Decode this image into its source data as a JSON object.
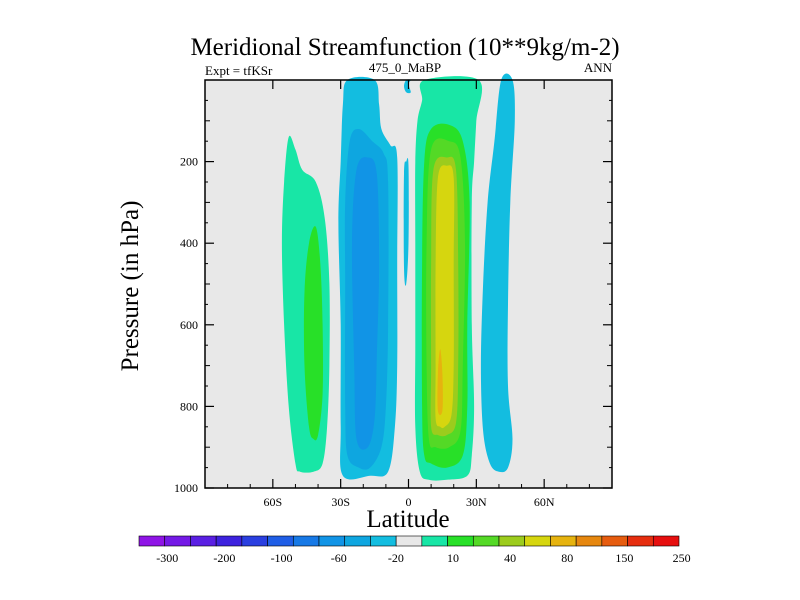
{
  "chart_data": {
    "type": "contour",
    "title": "Meridional Streamfunction (10**9kg/m-2)",
    "left_label": "Expt = tfKSr",
    "center_label": "475_0_MaBP",
    "right_label": "ANN",
    "xlabel": "Latitude",
    "ylabel": "Pressure (in hPa)",
    "xlim": [
      -90,
      90
    ],
    "ylim": [
      1000,
      0
    ],
    "x_ticks": [
      {
        "value": -60,
        "label": "60S"
      },
      {
        "value": -30,
        "label": "30S"
      },
      {
        "value": 0,
        "label": "0"
      },
      {
        "value": 30,
        "label": "30N"
      },
      {
        "value": 60,
        "label": "60N"
      }
    ],
    "y_ticks": [
      {
        "value": 200,
        "label": "200"
      },
      {
        "value": 400,
        "label": "400"
      },
      {
        "value": 600,
        "label": "600"
      },
      {
        "value": 800,
        "label": "800"
      },
      {
        "value": 1000,
        "label": "1000"
      }
    ],
    "colorbar": {
      "colors": [
        "#8f14e6",
        "#7419e6",
        "#5a1fe3",
        "#3d22de",
        "#2a3fe0",
        "#1f5ee6",
        "#1779e6",
        "#1194e6",
        "#0ea6e0",
        "#13bde0",
        "#e8e8e8",
        "#18e6a6",
        "#28e028",
        "#54d926",
        "#9ccc1d",
        "#d6d60f",
        "#e6b30f",
        "#e6870f",
        "#e65c0f",
        "#e62e0f",
        "#e60f0f"
      ],
      "labels": [
        "-300",
        "-200",
        "-100",
        "-60",
        "-20",
        "10",
        "40",
        "80",
        "150",
        "250"
      ]
    },
    "regions": [
      {
        "name": "sh-ferrel-outer",
        "color": "#18e6a6",
        "level": 10,
        "points": [
          [
            -50,
            940
          ],
          [
            -53,
            800
          ],
          [
            -55,
            600
          ],
          [
            -56,
            400
          ],
          [
            -55,
            250
          ],
          [
            -53,
            140
          ],
          [
            -50,
            170
          ],
          [
            -47,
            220
          ],
          [
            -41,
            250
          ],
          [
            -37,
            340
          ],
          [
            -35,
            500
          ],
          [
            -35,
            700
          ],
          [
            -36,
            850
          ],
          [
            -38,
            940
          ],
          [
            -42,
            960
          ],
          [
            -48,
            960
          ]
        ]
      },
      {
        "name": "sh-ferrel-inner",
        "color": "#28e028",
        "level": 40,
        "points": [
          [
            -44,
            850
          ],
          [
            -46,
            700
          ],
          [
            -46,
            520
          ],
          [
            -44,
            400
          ],
          [
            -41,
            360
          ],
          [
            -39,
            450
          ],
          [
            -38,
            600
          ],
          [
            -38,
            770
          ],
          [
            -40,
            870
          ],
          [
            -42,
            880
          ]
        ]
      },
      {
        "name": "sh-hadley-outer",
        "color": "#13bde0",
        "level": -20,
        "points": [
          [
            -29,
            970
          ],
          [
            -30,
            850
          ],
          [
            -30,
            600
          ],
          [
            -31,
            350
          ],
          [
            -30,
            200
          ],
          [
            -29,
            60
          ],
          [
            -27,
            0
          ],
          [
            -15,
            0
          ],
          [
            -13,
            60
          ],
          [
            -12,
            120
          ],
          [
            -8,
            160
          ],
          [
            -5,
            190
          ],
          [
            -5,
            450
          ],
          [
            -5,
            700
          ],
          [
            -6,
            850
          ],
          [
            -9,
            960
          ],
          [
            -17,
            970
          ]
        ]
      },
      {
        "name": "sh-hadley-mid",
        "color": "#0ea6e0",
        "level": -40,
        "points": [
          [
            -27,
            920
          ],
          [
            -28,
            800
          ],
          [
            -28,
            500
          ],
          [
            -28,
            300
          ],
          [
            -26,
            150
          ],
          [
            -22,
            120
          ],
          [
            -16,
            150
          ],
          [
            -11,
            180
          ],
          [
            -9,
            250
          ],
          [
            -9,
            600
          ],
          [
            -10,
            800
          ],
          [
            -12,
            900
          ],
          [
            -17,
            950
          ],
          [
            -22,
            950
          ]
        ]
      },
      {
        "name": "sh-hadley-core",
        "color": "#1194e6",
        "level": -60,
        "points": [
          [
            -23,
            880
          ],
          [
            -24,
            700
          ],
          [
            -25,
            400
          ],
          [
            -23,
            220
          ],
          [
            -18,
            190
          ],
          [
            -14,
            230
          ],
          [
            -13,
            450
          ],
          [
            -14,
            680
          ],
          [
            -15,
            830
          ],
          [
            -18,
            900
          ]
        ]
      },
      {
        "name": "eq-dip",
        "color": "#13bde0",
        "level": -20,
        "points": [
          [
            -1,
            0
          ],
          [
            -2,
            15
          ],
          [
            -1,
            30
          ],
          [
            1,
            30
          ],
          [
            0,
            10
          ],
          [
            1,
            0
          ]
        ]
      },
      {
        "name": "eq-sliver",
        "color": "#13bde0",
        "level": -20,
        "points": [
          [
            -2,
            230
          ],
          [
            -1,
            200
          ],
          [
            0,
            210
          ],
          [
            0,
            400
          ],
          [
            -1,
            500
          ],
          [
            -2,
            460
          ]
        ]
      },
      {
        "name": "nh-hadley-outer",
        "color": "#18e6a6",
        "level": 10,
        "points": [
          [
            5,
            960
          ],
          [
            3,
            850
          ],
          [
            3,
            650
          ],
          [
            3,
            400
          ],
          [
            3,
            200
          ],
          [
            4,
            100
          ],
          [
            6,
            50
          ],
          [
            7,
            0
          ],
          [
            31,
            0
          ],
          [
            30,
            100
          ],
          [
            29,
            200
          ],
          [
            28,
            300
          ],
          [
            28,
            600
          ],
          [
            29,
            800
          ],
          [
            28,
            920
          ],
          [
            26,
            970
          ],
          [
            17,
            980
          ],
          [
            9,
            980
          ]
        ]
      },
      {
        "name": "nh-hadley-40",
        "color": "#28e028",
        "level": 40,
        "points": [
          [
            7,
            920
          ],
          [
            6,
            800
          ],
          [
            6,
            450
          ],
          [
            7,
            200
          ],
          [
            10,
            120
          ],
          [
            18,
            110
          ],
          [
            24,
            150
          ],
          [
            27,
            300
          ],
          [
            26,
            600
          ],
          [
            26,
            800
          ],
          [
            24,
            920
          ],
          [
            17,
            950
          ],
          [
            10,
            940
          ]
        ]
      },
      {
        "name": "nh-hadley-60",
        "color": "#54d926",
        "level": 60,
        "points": [
          [
            9,
            880
          ],
          [
            8,
            700
          ],
          [
            8,
            400
          ],
          [
            10,
            170
          ],
          [
            18,
            150
          ],
          [
            23,
            190
          ],
          [
            25,
            400
          ],
          [
            24,
            700
          ],
          [
            23,
            860
          ],
          [
            18,
            900
          ],
          [
            12,
            900
          ]
        ]
      },
      {
        "name": "nh-hadley-80",
        "color": "#9ccc1d",
        "level": 80,
        "points": [
          [
            10,
            850
          ],
          [
            10,
            700
          ],
          [
            10,
            450
          ],
          [
            11,
            220
          ],
          [
            17,
            190
          ],
          [
            21,
            220
          ],
          [
            22,
            450
          ],
          [
            22,
            700
          ],
          [
            21,
            840
          ],
          [
            17,
            870
          ],
          [
            13,
            870
          ]
        ]
      },
      {
        "name": "nh-hadley-core",
        "color": "#d6d60f",
        "level": 100,
        "points": [
          [
            12,
            830
          ],
          [
            12,
            700
          ],
          [
            12,
            450
          ],
          [
            13,
            240
          ],
          [
            17,
            210
          ],
          [
            20,
            240
          ],
          [
            20,
            450
          ],
          [
            20,
            700
          ],
          [
            19,
            820
          ],
          [
            16,
            850
          ],
          [
            14,
            850
          ]
        ]
      },
      {
        "name": "nh-hadley-max",
        "color": "#e6b30f",
        "level": 150,
        "points": [
          [
            13,
            810
          ],
          [
            13,
            720
          ],
          [
            14,
            660
          ],
          [
            15,
            720
          ],
          [
            15,
            810
          ]
        ]
      },
      {
        "name": "nh-ferrel",
        "color": "#13bde0",
        "level": -20,
        "points": [
          [
            36,
            940
          ],
          [
            33,
            860
          ],
          [
            32,
            700
          ],
          [
            33,
            500
          ],
          [
            35,
            300
          ],
          [
            38,
            150
          ],
          [
            41,
            0
          ],
          [
            46,
            0
          ],
          [
            47,
            100
          ],
          [
            45,
            300
          ],
          [
            44,
            550
          ],
          [
            44,
            750
          ],
          [
            46,
            880
          ],
          [
            44,
            950
          ],
          [
            40,
            960
          ]
        ]
      }
    ]
  }
}
